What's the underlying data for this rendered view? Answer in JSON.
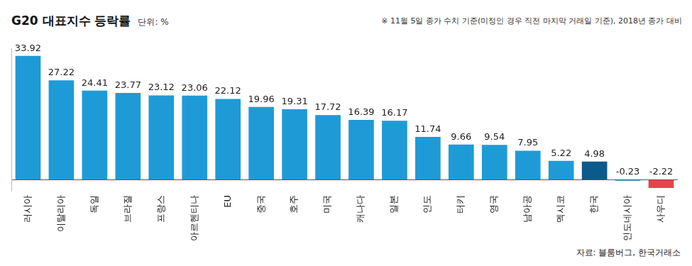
{
  "chart_data": {
    "type": "bar",
    "title": "G20 대표지수 등락률",
    "subtitle": "단위: %",
    "annotations": [
      "※ 11월 5일 종가 수치 기준(미정인 경우 직전 마지막 거래일 기준), 2018년 종가 대비",
      "자료: 블룸버그, 한국거래소"
    ],
    "categories": [
      "러시아",
      "이탈리아",
      "독일",
      "브라질",
      "프랑스",
      "아르헨티나",
      "EU",
      "중국",
      "호주",
      "미국",
      "캐나다",
      "일본",
      "인도",
      "터키",
      "영국",
      "남아공",
      "멕시코",
      "한국",
      "인도네시아",
      "사우디"
    ],
    "values": [
      33.92,
      27.22,
      24.41,
      23.77,
      23.12,
      23.06,
      22.12,
      19.96,
      19.31,
      17.72,
      16.39,
      16.17,
      11.74,
      9.66,
      9.54,
      7.95,
      5.22,
      4.98,
      -0.23,
      -2.22
    ],
    "colors": [
      "#1e9bd7",
      "#1e9bd7",
      "#1e9bd7",
      "#1e9bd7",
      "#1e9bd7",
      "#1e9bd7",
      "#1e9bd7",
      "#1e9bd7",
      "#1e9bd7",
      "#1e9bd7",
      "#1e9bd7",
      "#1e9bd7",
      "#1e9bd7",
      "#1e9bd7",
      "#1e9bd7",
      "#1e9bd7",
      "#1e9bd7",
      "#0b5a8c",
      "#1e9bd7",
      "#e8434c"
    ],
    "ylim": [
      -3,
      36
    ],
    "yticks": [
      0
    ],
    "data_labels": true,
    "tick_labels": "x"
  }
}
